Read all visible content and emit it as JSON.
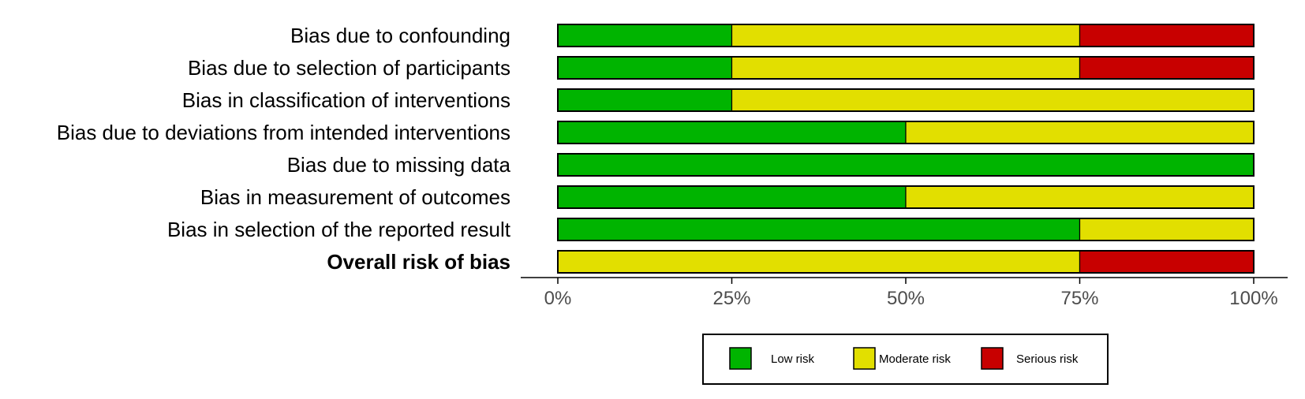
{
  "chart_data": {
    "type": "bar",
    "stacked": true,
    "orientation": "horizontal",
    "categories": [
      "Bias due to confounding",
      "Bias due to selection of participants",
      "Bias in classification of interventions",
      "Bias due to deviations from intended interventions",
      "Bias due to missing data",
      "Bias in measurement of outcomes",
      "Bias in selection of the reported result",
      "Overall risk of bias"
    ],
    "bold_categories": [
      "Overall risk of bias"
    ],
    "series": [
      {
        "name": "Low risk",
        "color": "#00b400",
        "values": [
          25,
          25,
          25,
          50,
          100,
          50,
          75,
          0
        ]
      },
      {
        "name": "Moderate risk",
        "color": "#e2df00",
        "values": [
          50,
          50,
          75,
          50,
          0,
          50,
          25,
          75
        ]
      },
      {
        "name": "Serious risk",
        "color": "#c80000",
        "values": [
          25,
          25,
          0,
          0,
          0,
          0,
          0,
          25
        ]
      }
    ],
    "xlim": [
      0,
      100
    ],
    "x_ticks": [
      "0%",
      "25%",
      "50%",
      "75%",
      "100%"
    ],
    "grid": false,
    "legend_position": "bottom"
  }
}
